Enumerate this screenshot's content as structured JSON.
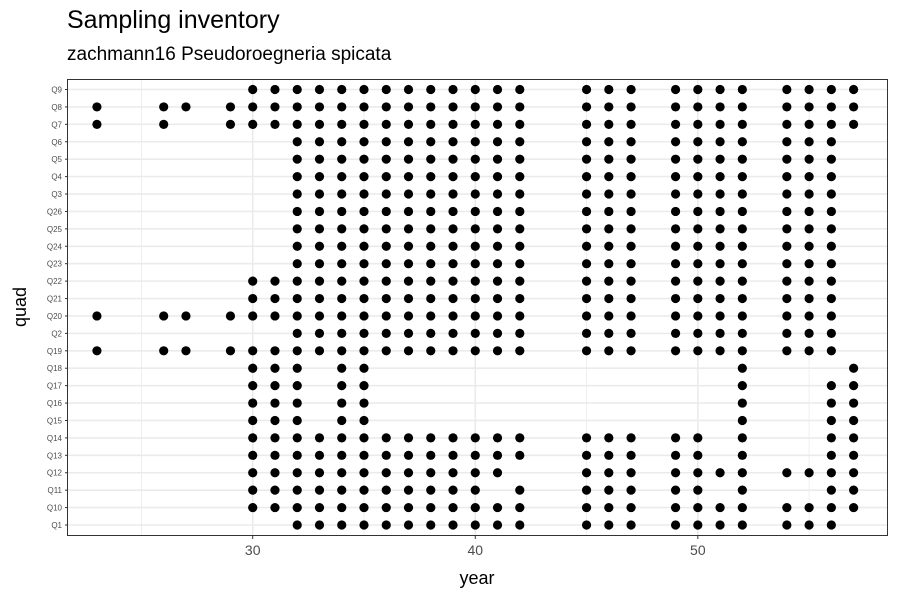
{
  "chart_data": {
    "type": "scatter",
    "title": "Sampling inventory",
    "subtitle": "zachmann16 Pseudoroegneria spicata",
    "xlabel": "year",
    "ylabel": "quad",
    "xlim": [
      21.7,
      58.5
    ],
    "x_ticks": [
      30,
      40,
      50
    ],
    "categories": [
      "Q1",
      "Q10",
      "Q11",
      "Q12",
      "Q13",
      "Q14",
      "Q15",
      "Q16",
      "Q17",
      "Q18",
      "Q19",
      "Q2",
      "Q20",
      "Q21",
      "Q22",
      "Q23",
      "Q24",
      "Q25",
      "Q26",
      "Q3",
      "Q4",
      "Q5",
      "Q6",
      "Q7",
      "Q8",
      "Q9"
    ],
    "grid": true,
    "point_color": "#000000",
    "series": [
      {
        "quad": "Q1",
        "years": [
          32,
          33,
          34,
          35,
          36,
          37,
          38,
          39,
          40,
          41,
          42,
          45,
          46,
          47,
          49,
          50,
          51,
          52,
          54,
          55,
          56
        ]
      },
      {
        "quad": "Q10",
        "years": [
          30,
          31,
          32,
          33,
          34,
          35,
          36,
          37,
          38,
          39,
          40,
          41,
          42,
          45,
          46,
          47,
          49,
          50,
          51,
          52,
          54,
          55,
          56,
          57
        ]
      },
      {
        "quad": "Q11",
        "years": [
          30,
          31,
          32,
          33,
          34,
          35,
          36,
          37,
          38,
          39,
          40,
          42,
          45,
          46,
          47,
          49,
          50,
          52,
          56,
          57
        ]
      },
      {
        "quad": "Q12",
        "years": [
          30,
          31,
          32,
          33,
          34,
          35,
          36,
          37,
          38,
          39,
          40,
          41,
          45,
          46,
          47,
          49,
          50,
          51,
          52,
          54,
          55,
          56,
          57
        ]
      },
      {
        "quad": "Q13",
        "years": [
          30,
          31,
          32,
          33,
          34,
          35,
          36,
          37,
          38,
          39,
          40,
          41,
          42,
          45,
          46,
          47,
          49,
          50,
          52,
          56,
          57
        ]
      },
      {
        "quad": "Q14",
        "years": [
          30,
          31,
          32,
          33,
          34,
          35,
          36,
          37,
          38,
          39,
          40,
          41,
          42,
          45,
          46,
          47,
          49,
          50,
          52,
          56,
          57
        ]
      },
      {
        "quad": "Q15",
        "years": [
          30,
          31,
          32,
          34,
          35,
          52,
          56,
          57
        ]
      },
      {
        "quad": "Q16",
        "years": [
          30,
          31,
          32,
          34,
          35,
          52,
          56,
          57
        ]
      },
      {
        "quad": "Q17",
        "years": [
          30,
          31,
          32,
          34,
          35,
          52,
          56,
          57
        ]
      },
      {
        "quad": "Q18",
        "years": [
          30,
          31,
          32,
          34,
          35,
          52,
          57
        ]
      },
      {
        "quad": "Q19",
        "years": [
          23,
          26,
          27,
          29,
          30,
          31,
          32,
          33,
          34,
          35,
          36,
          37,
          38,
          39,
          40,
          41,
          42,
          45,
          46,
          47,
          49,
          50,
          51,
          52,
          54,
          55,
          56
        ]
      },
      {
        "quad": "Q2",
        "years": [
          32,
          33,
          34,
          35,
          36,
          37,
          38,
          39,
          40,
          41,
          42,
          45,
          46,
          47,
          49,
          50,
          51,
          52,
          54,
          55,
          56
        ]
      },
      {
        "quad": "Q20",
        "years": [
          23,
          26,
          27,
          29,
          30,
          31,
          32,
          33,
          34,
          35,
          36,
          37,
          38,
          39,
          40,
          41,
          42,
          45,
          46,
          47,
          49,
          50,
          51,
          52,
          54,
          55,
          56
        ]
      },
      {
        "quad": "Q21",
        "years": [
          30,
          31,
          32,
          33,
          34,
          35,
          36,
          37,
          38,
          39,
          40,
          41,
          42,
          45,
          46,
          47,
          49,
          50,
          51,
          52,
          54,
          55,
          56
        ]
      },
      {
        "quad": "Q22",
        "years": [
          30,
          31,
          32,
          33,
          34,
          35,
          36,
          37,
          38,
          39,
          40,
          41,
          42,
          45,
          46,
          47,
          49,
          50,
          51,
          52,
          54,
          55,
          56
        ]
      },
      {
        "quad": "Q23",
        "years": [
          32,
          33,
          34,
          35,
          36,
          37,
          38,
          39,
          40,
          41,
          42,
          45,
          46,
          47,
          49,
          50,
          51,
          52,
          54,
          55,
          56
        ]
      },
      {
        "quad": "Q24",
        "years": [
          32,
          33,
          34,
          35,
          36,
          37,
          38,
          39,
          40,
          41,
          42,
          45,
          46,
          47,
          49,
          50,
          51,
          52,
          54,
          55,
          56
        ]
      },
      {
        "quad": "Q25",
        "years": [
          32,
          33,
          34,
          35,
          36,
          37,
          38,
          39,
          40,
          41,
          42,
          45,
          46,
          47,
          49,
          50,
          51,
          52,
          54,
          55,
          56
        ]
      },
      {
        "quad": "Q26",
        "years": [
          32,
          33,
          34,
          35,
          36,
          37,
          38,
          39,
          40,
          41,
          42,
          45,
          46,
          47,
          49,
          50,
          51,
          52,
          54,
          55,
          56
        ]
      },
      {
        "quad": "Q3",
        "years": [
          32,
          33,
          34,
          35,
          36,
          37,
          38,
          39,
          40,
          41,
          42,
          45,
          46,
          47,
          49,
          50,
          51,
          52,
          54,
          55,
          56
        ]
      },
      {
        "quad": "Q4",
        "years": [
          32,
          33,
          34,
          35,
          36,
          37,
          38,
          39,
          40,
          41,
          42,
          45,
          46,
          47,
          49,
          50,
          51,
          52,
          54,
          55,
          56
        ]
      },
      {
        "quad": "Q5",
        "years": [
          32,
          33,
          34,
          35,
          36,
          37,
          38,
          39,
          40,
          41,
          42,
          45,
          46,
          47,
          49,
          50,
          51,
          52,
          54,
          55,
          56
        ]
      },
      {
        "quad": "Q6",
        "years": [
          32,
          33,
          34,
          35,
          36,
          37,
          38,
          39,
          40,
          41,
          42,
          45,
          46,
          47,
          49,
          50,
          51,
          52,
          54,
          55,
          56
        ]
      },
      {
        "quad": "Q7",
        "years": [
          23,
          26,
          29,
          30,
          31,
          32,
          33,
          34,
          35,
          36,
          37,
          38,
          39,
          40,
          41,
          42,
          45,
          46,
          47,
          49,
          50,
          51,
          52,
          54,
          55,
          56,
          57
        ]
      },
      {
        "quad": "Q8",
        "years": [
          23,
          26,
          27,
          29,
          30,
          31,
          32,
          33,
          34,
          35,
          36,
          37,
          38,
          39,
          40,
          41,
          42,
          45,
          46,
          47,
          49,
          50,
          51,
          52,
          54,
          55,
          56,
          57
        ]
      },
      {
        "quad": "Q9",
        "years": [
          30,
          31,
          32,
          33,
          34,
          35,
          36,
          37,
          38,
          39,
          40,
          41,
          42,
          45,
          46,
          47,
          49,
          50,
          51,
          52,
          54,
          55,
          56,
          57
        ]
      }
    ]
  }
}
